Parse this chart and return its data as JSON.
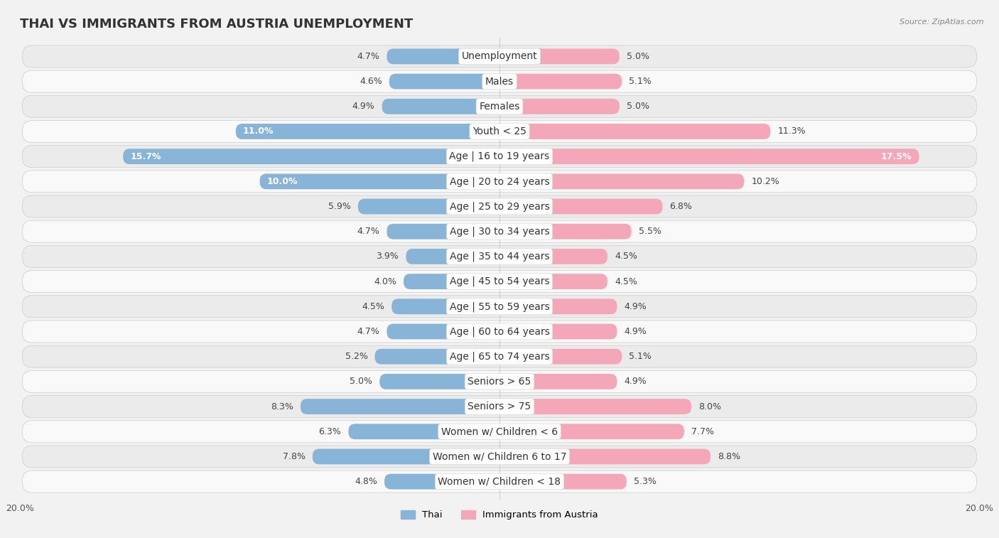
{
  "title": "THAI VS IMMIGRANTS FROM AUSTRIA UNEMPLOYMENT",
  "source": "Source: ZipAtlas.com",
  "categories": [
    "Unemployment",
    "Males",
    "Females",
    "Youth < 25",
    "Age | 16 to 19 years",
    "Age | 20 to 24 years",
    "Age | 25 to 29 years",
    "Age | 30 to 34 years",
    "Age | 35 to 44 years",
    "Age | 45 to 54 years",
    "Age | 55 to 59 years",
    "Age | 60 to 64 years",
    "Age | 65 to 74 years",
    "Seniors > 65",
    "Seniors > 75",
    "Women w/ Children < 6",
    "Women w/ Children 6 to 17",
    "Women w/ Children < 18"
  ],
  "thai": [
    4.7,
    4.6,
    4.9,
    11.0,
    15.7,
    10.0,
    5.9,
    4.7,
    3.9,
    4.0,
    4.5,
    4.7,
    5.2,
    5.0,
    8.3,
    6.3,
    7.8,
    4.8
  ],
  "austria": [
    5.0,
    5.1,
    5.0,
    11.3,
    17.5,
    10.2,
    6.8,
    5.5,
    4.5,
    4.5,
    4.9,
    4.9,
    5.1,
    4.9,
    8.0,
    7.7,
    8.8,
    5.3
  ],
  "thai_color": "#88b4d7",
  "thai_color_dark": "#5a8fc0",
  "austria_color": "#f4a7b9",
  "austria_color_dark": "#e06080",
  "thai_label": "Thai",
  "austria_label": "Immigrants from Austria",
  "x_max": 20.0,
  "bar_height": 0.62,
  "background_color": "#f2f2f2",
  "row_even_color": "#ebebeb",
  "row_odd_color": "#f9f9f9",
  "title_fontsize": 13,
  "label_fontsize": 9.5,
  "value_fontsize": 9,
  "tick_fontsize": 9,
  "cat_label_fontsize": 10
}
